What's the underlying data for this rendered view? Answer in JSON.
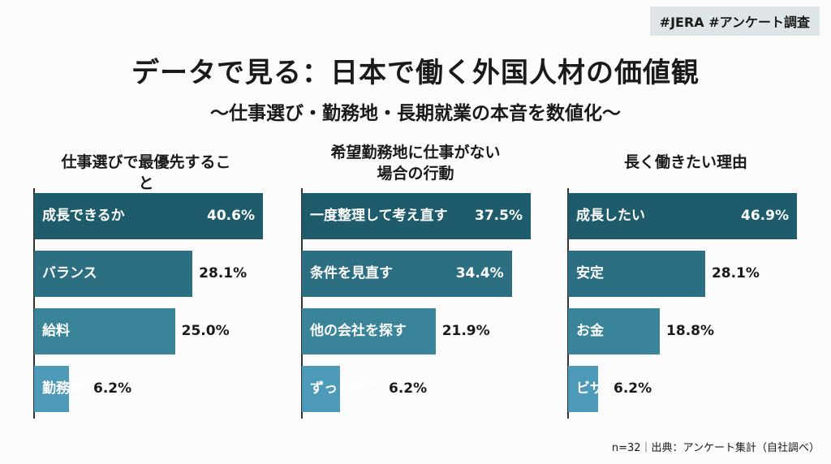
{
  "tag": "#JERA #アンケート調査",
  "title": "データで見る：日本で働く外国人材の価値観",
  "subtitle": "〜仕事選び・勤務地・長期就業の本音を数値化〜",
  "source": "n=32｜出典：アンケート集計（自社調べ）",
  "chart_data": [
    {
      "type": "bar",
      "title": "仕事選びで最優先すること",
      "categories": [
        "成長できるか",
        "バランス",
        "給料",
        "勤務地"
      ],
      "values": [
        40.6,
        28.1,
        25.0,
        6.2
      ],
      "value_labels": [
        "40.6%",
        "28.1%",
        "25.0%",
        "6.2%"
      ],
      "colors": [
        "#1e5b6b",
        "#2c6f82",
        "#398499",
        "#4c9ab7"
      ]
    },
    {
      "type": "bar",
      "title": "希望勤務地に仕事がない場合の行動",
      "categories": [
        "一度整理して考え直す",
        "条件を見直す",
        "他の会社を探す",
        "ずっと待つ"
      ],
      "values": [
        37.5,
        34.4,
        21.9,
        6.2
      ],
      "value_labels": [
        "37.5%",
        "34.4%",
        "21.9%",
        "6.2%"
      ],
      "colors": [
        "#1e5b6b",
        "#2c6f82",
        "#398499",
        "#4c9ab7"
      ]
    },
    {
      "type": "bar",
      "title": "長く働きたい理由",
      "categories": [
        "成長したい",
        "安定",
        "お金",
        "ビザ"
      ],
      "values": [
        46.9,
        28.1,
        18.8,
        6.2
      ],
      "value_labels": [
        "46.9%",
        "28.1%",
        "18.8%",
        "6.2%"
      ],
      "colors": [
        "#1e5b6b",
        "#2c6f82",
        "#398499",
        "#4c9ab7"
      ]
    }
  ]
}
